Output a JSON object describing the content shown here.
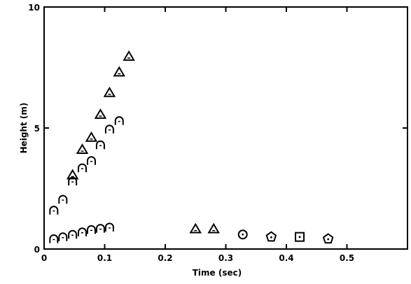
{
  "chart_data": {
    "type": "scatter",
    "xlabel": "Time (sec)",
    "ylabel": "Height (m)",
    "xlim": [
      0,
      0.6
    ],
    "ylim": [
      0,
      10
    ],
    "x_ticks": [
      {
        "value": 0,
        "label": "0"
      },
      {
        "value": 0.1,
        "label": "0.1"
      },
      {
        "value": 0.2,
        "label": "0.2"
      },
      {
        "value": 0.3,
        "label": "0.3"
      },
      {
        "value": 0.4,
        "label": "0.4"
      },
      {
        "value": 0.5,
        "label": "0.5"
      }
    ],
    "y_ticks": [
      {
        "value": 0,
        "label": "0"
      },
      {
        "value": 5,
        "label": "5"
      },
      {
        "value": 10,
        "label": "10"
      }
    ],
    "grid": false,
    "series": [
      {
        "marker": "triangle",
        "x": [
          0.047,
          0.063,
          0.078,
          0.093,
          0.108,
          0.124,
          0.14,
          0.25,
          0.28
        ],
        "y": [
          3.05,
          4.1,
          4.6,
          5.55,
          6.45,
          7.3,
          7.95,
          0.82,
          0.82
        ]
      },
      {
        "marker": "open-arc",
        "x": [
          0.016,
          0.031,
          0.047,
          0.063,
          0.078,
          0.093,
          0.108,
          0.124
        ],
        "y": [
          1.6,
          2.05,
          2.8,
          3.35,
          3.65,
          4.3,
          4.95,
          5.3
        ]
      },
      {
        "marker": "open-arc",
        "x": [
          0.016,
          0.031,
          0.047,
          0.063,
          0.078,
          0.093,
          0.108
        ],
        "y": [
          0.42,
          0.5,
          0.6,
          0.7,
          0.8,
          0.85,
          0.9
        ]
      },
      {
        "marker": "circle-dot",
        "x": [
          0.328
        ],
        "y": [
          0.6
        ]
      },
      {
        "marker": "pentagon-dot",
        "x": [
          0.375,
          0.469
        ],
        "y": [
          0.5,
          0.42
        ]
      },
      {
        "marker": "square-dot",
        "x": [
          0.422
        ],
        "y": [
          0.5
        ]
      }
    ]
  }
}
